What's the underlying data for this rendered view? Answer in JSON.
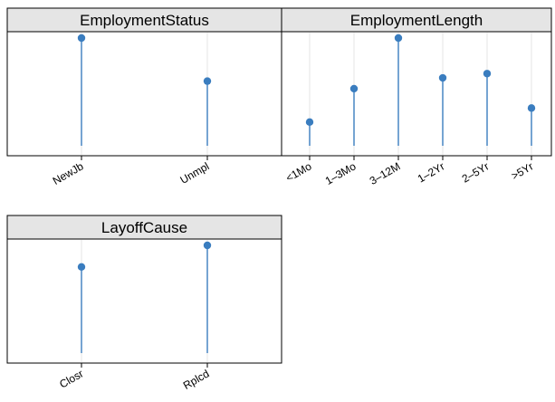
{
  "colors": {
    "marker": "#3a7dbf",
    "strip_fill": "#e5e5e5"
  },
  "chart_data": [
    {
      "type": "lollipop",
      "title": "EmploymentStatus",
      "categories": [
        "NewJb",
        "Unmpl"
      ],
      "values": [
        1.0,
        0.6
      ],
      "ylim": [
        0,
        1.05
      ],
      "grid": true
    },
    {
      "type": "lollipop",
      "title": "EmploymentLength",
      "categories": [
        "<1Mo",
        "1–3Mo",
        "3–12M",
        "1–2Yr",
        "2–5Yr",
        ">5Yr"
      ],
      "values": [
        0.22,
        0.53,
        1.0,
        0.63,
        0.67,
        0.35
      ],
      "ylim": [
        0,
        1.05
      ],
      "grid": true
    },
    {
      "type": "lollipop",
      "title": "LayoffCause",
      "categories": [
        "Closr",
        "Rplcd"
      ],
      "values": [
        0.8,
        1.0
      ],
      "ylim": [
        0,
        1.05
      ],
      "grid": true
    }
  ]
}
